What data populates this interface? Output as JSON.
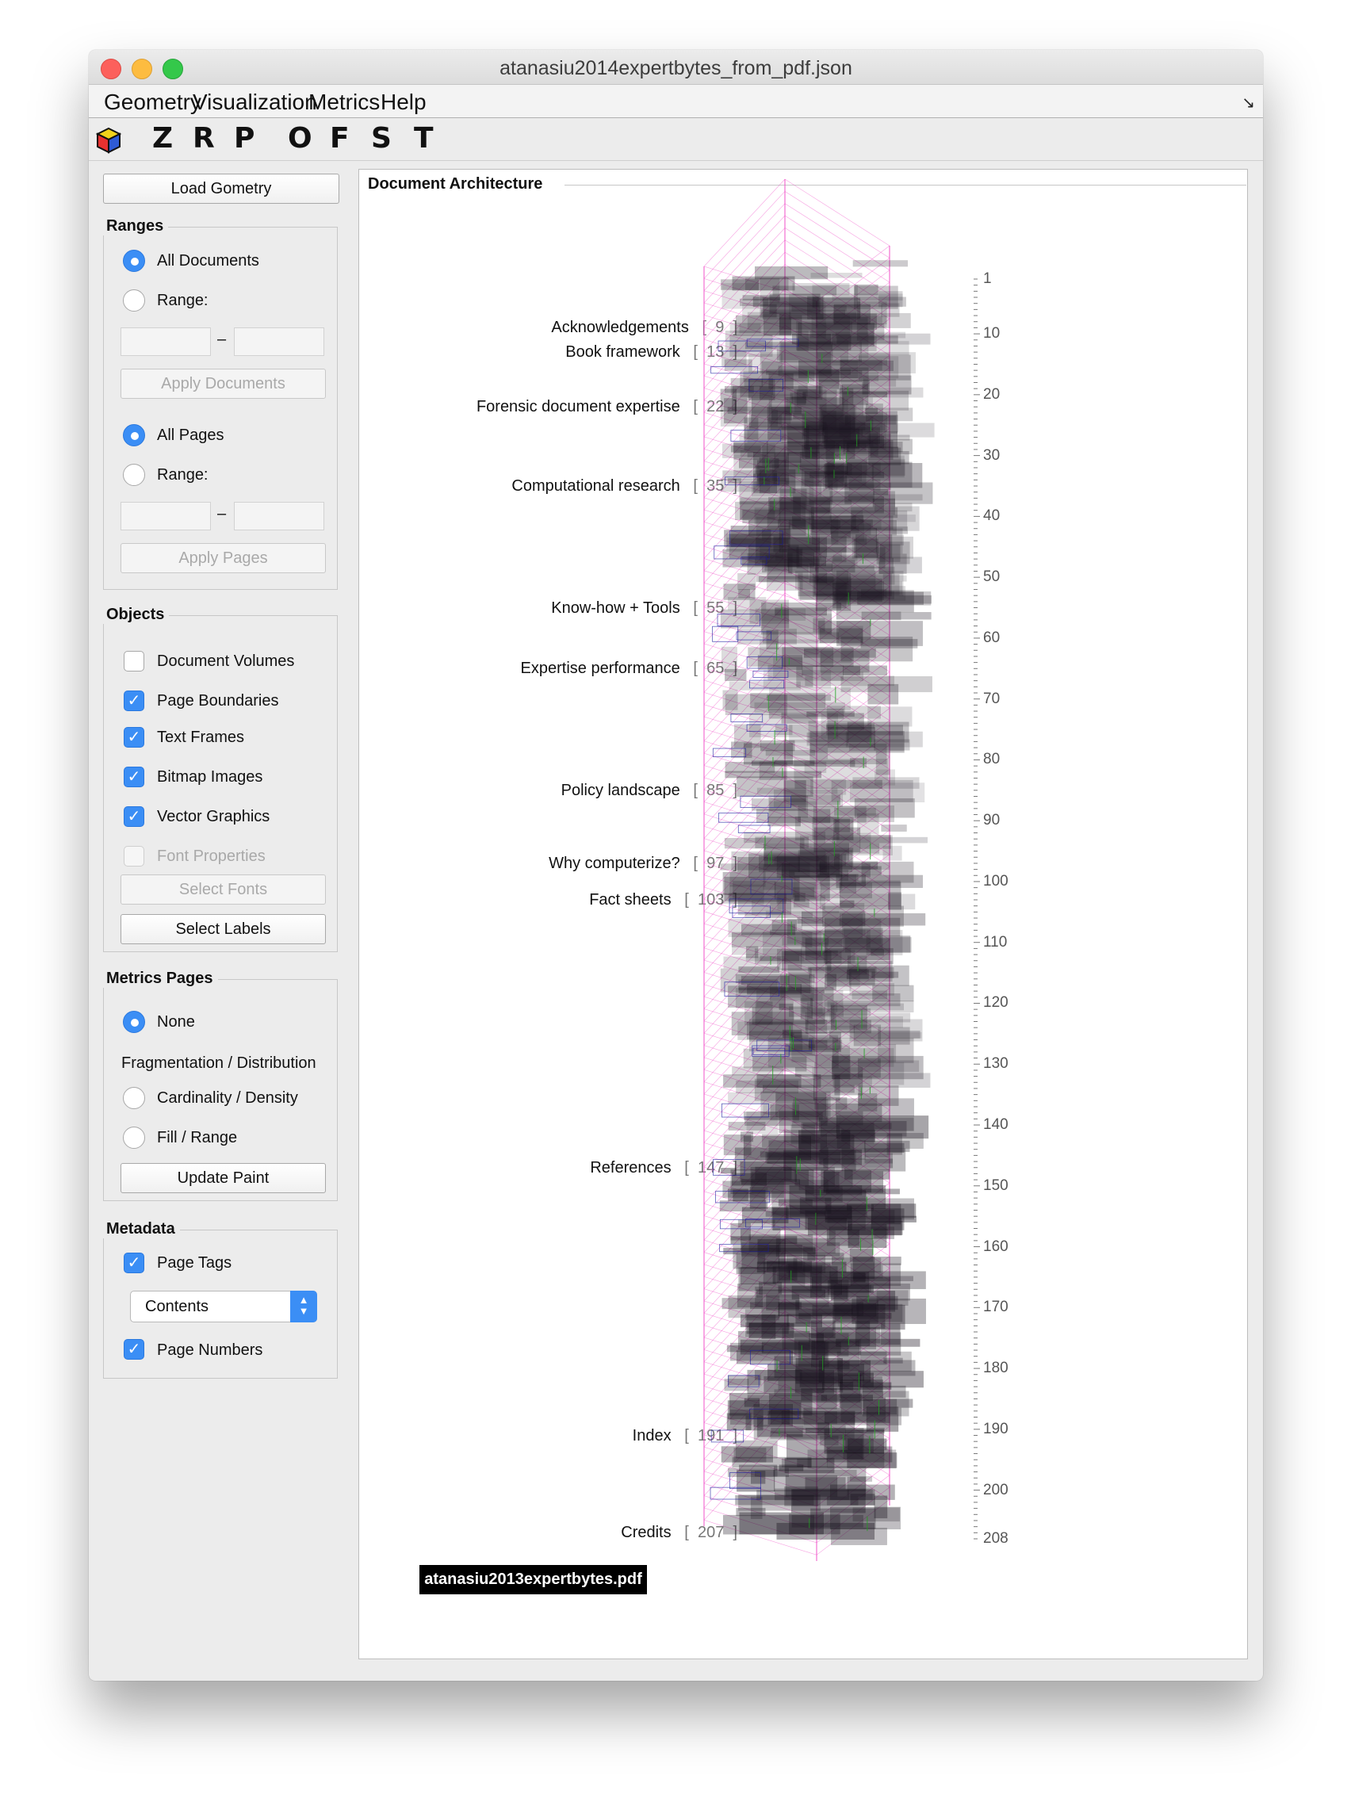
{
  "window": {
    "title": "atanasiu2014expertbytes_from_pdf.json"
  },
  "menu": {
    "items": [
      "Geometry",
      "Visualization",
      "Metrics",
      "Help"
    ],
    "corner": "↘"
  },
  "toolbar": {
    "letters": [
      "Z",
      "R",
      "P",
      "O",
      "F",
      "S",
      "T"
    ]
  },
  "left": {
    "load_button": "Load Gometry",
    "ranges": {
      "title": "Ranges",
      "all_documents": "All Documents",
      "range_label_1": "Range:",
      "apply_documents": "Apply Documents",
      "all_pages": "All Pages",
      "range_label_2": "Range:",
      "apply_pages": "Apply Pages",
      "dash": "–"
    },
    "objects": {
      "title": "Objects",
      "items": [
        {
          "label": "Document Volumes",
          "checked": false,
          "enabled": true
        },
        {
          "label": "Page Boundaries",
          "checked": true,
          "enabled": true
        },
        {
          "label": "Text Frames",
          "checked": true,
          "enabled": true
        },
        {
          "label": "Bitmap Images",
          "checked": true,
          "enabled": true
        },
        {
          "label": "Vector Graphics",
          "checked": true,
          "enabled": true
        },
        {
          "label": "Font Properties",
          "checked": false,
          "enabled": false
        }
      ],
      "select_fonts": "Select Fonts",
      "select_labels": "Select Labels"
    },
    "metrics": {
      "title": "Metrics Pages",
      "none": "None",
      "fragmentation": "Fragmentation / Distribution",
      "cardinality": "Cardinality / Density",
      "fill": "Fill / Range",
      "update": "Update Paint"
    },
    "metadata": {
      "title": "Metadata",
      "page_tags": "Page Tags",
      "select_value": "Contents",
      "page_numbers": "Page Numbers"
    }
  },
  "panel": {
    "title": "Document Architecture",
    "filename": "atanasiu2013expertbytes.pdf",
    "sections": [
      {
        "label": "Acknowledgements",
        "page": "9"
      },
      {
        "label": "Book framework",
        "page": "13"
      },
      {
        "label": "Forensic document expertise",
        "page": "22"
      },
      {
        "label": "Computational research",
        "page": "35"
      },
      {
        "label": "Know-how + Tools",
        "page": "55"
      },
      {
        "label": "Expertise performance",
        "page": "65"
      },
      {
        "label": "Policy landscape",
        "page": "85"
      },
      {
        "label": "Why computerize?",
        "page": "97"
      },
      {
        "label": "Fact sheets",
        "page": "103"
      },
      {
        "label": "References",
        "page": "147"
      },
      {
        "label": "Index",
        "page": "191"
      },
      {
        "label": "Credits",
        "page": "207"
      }
    ],
    "axis": {
      "min": 1,
      "max": 208,
      "ticks": [
        1,
        10,
        20,
        30,
        40,
        50,
        60,
        70,
        80,
        90,
        100,
        110,
        120,
        130,
        140,
        150,
        160,
        170,
        180,
        190,
        200,
        208
      ]
    }
  },
  "colors": {
    "accent": "#3b8ef5",
    "page_boundary": "#f050c8",
    "text_frame": "#2a2a2a",
    "image": "#1a1aa0",
    "vector": "#20a020"
  }
}
